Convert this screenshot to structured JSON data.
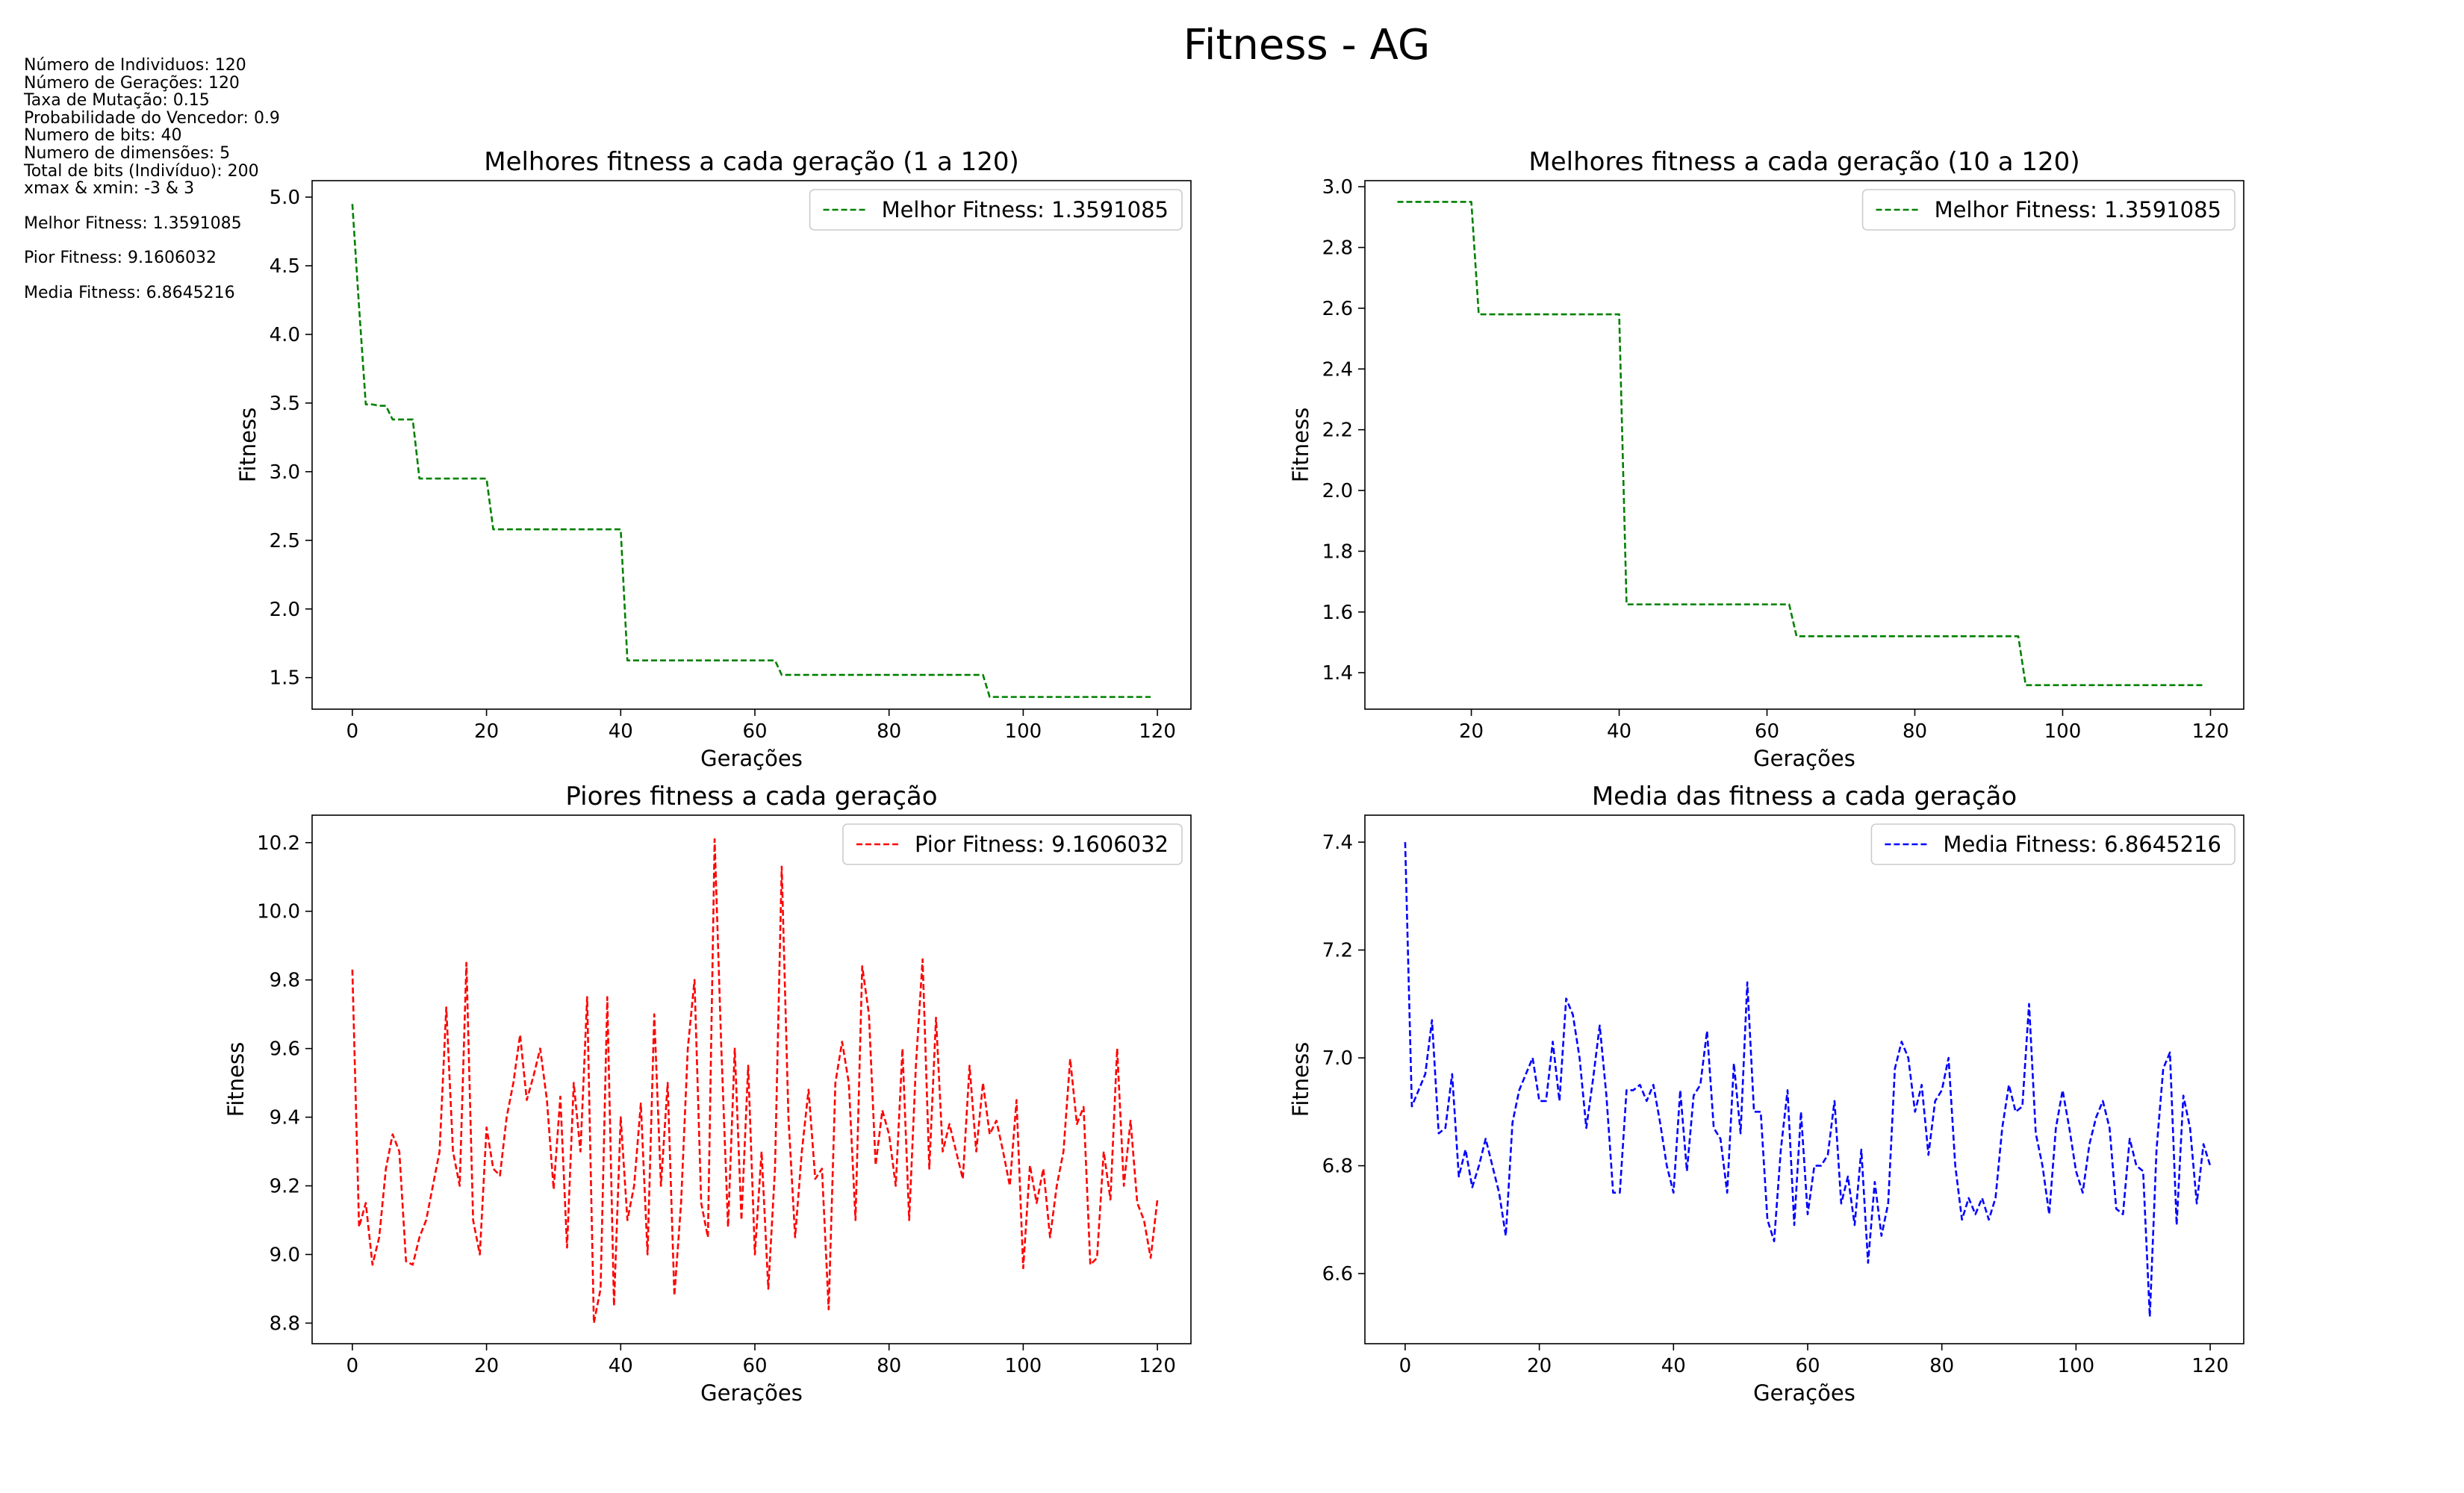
{
  "title": "Fitness - AG",
  "params_lines": [
    "Número de Individuos: 120",
    "Número de Gerações: 120",
    "Taxa de Mutação: 0.15",
    "Probabilidade do Vencedor: 0.9",
    "Numero de bits: 40",
    "Numero de dimensões: 5",
    "Total de bits (Indivíduo): 200",
    "xmax & xmin: -3 & 3"
  ],
  "summary_lines": [
    "Melhor Fitness: 1.3591085",
    "Pior Fitness: 9.1606032",
    "Media Fitness: 6.8645216"
  ],
  "colors": {
    "best": "#008000",
    "worst": "#ff0000",
    "mean": "#0000ff"
  },
  "chart_data": [
    {
      "type": "line",
      "title": "Melhores fitness a cada geração (1 a 120)",
      "xlabel": "Gerações",
      "ylabel": "Fitness",
      "xlim": [
        -6,
        125
      ],
      "ylim": [
        1.27,
        5.12
      ],
      "xticks": [
        0,
        20,
        40,
        60,
        80,
        100,
        120
      ],
      "yticks": [
        1.5,
        2.0,
        2.5,
        3.0,
        3.5,
        4.0,
        4.5,
        5.0
      ],
      "ytick_decimals": 1,
      "legend_position": "top-right",
      "series": [
        {
          "name": "Melhor Fitness: 1.3591085",
          "color": "#008000",
          "x_start": 0,
          "values": [
            4.95,
            4.2,
            3.49,
            3.49,
            3.48,
            3.48,
            3.38,
            3.38,
            3.38,
            3.38,
            2.95,
            2.95,
            2.95,
            2.95,
            2.95,
            2.95,
            2.95,
            2.95,
            2.95,
            2.95,
            2.95,
            2.58,
            2.58,
            2.58,
            2.58,
            2.58,
            2.58,
            2.58,
            2.58,
            2.58,
            2.58,
            2.58,
            2.58,
            2.58,
            2.58,
            2.58,
            2.58,
            2.58,
            2.58,
            2.58,
            2.58,
            1.625,
            1.625,
            1.625,
            1.625,
            1.625,
            1.625,
            1.625,
            1.625,
            1.625,
            1.625,
            1.625,
            1.625,
            1.625,
            1.625,
            1.625,
            1.625,
            1.625,
            1.625,
            1.625,
            1.625,
            1.625,
            1.625,
            1.625,
            1.52,
            1.52,
            1.52,
            1.52,
            1.52,
            1.52,
            1.52,
            1.52,
            1.52,
            1.52,
            1.52,
            1.52,
            1.52,
            1.52,
            1.52,
            1.52,
            1.52,
            1.52,
            1.52,
            1.52,
            1.52,
            1.52,
            1.52,
            1.52,
            1.52,
            1.52,
            1.52,
            1.52,
            1.52,
            1.52,
            1.52,
            1.359,
            1.359,
            1.359,
            1.359,
            1.359,
            1.359,
            1.359,
            1.359,
            1.359,
            1.359,
            1.359,
            1.359,
            1.359,
            1.359,
            1.359,
            1.359,
            1.359,
            1.359,
            1.359,
            1.359,
            1.359,
            1.359,
            1.359,
            1.359,
            1.359
          ]
        }
      ]
    },
    {
      "type": "line",
      "title": "Melhores fitness a cada geração (10 a 120)",
      "xlabel": "Gerações",
      "ylabel": "Fitness",
      "xlim": [
        5.6,
        124.5
      ],
      "ylim": [
        1.28,
        3.02
      ],
      "xticks": [
        20,
        40,
        60,
        80,
        100,
        120
      ],
      "yticks": [
        1.4,
        1.6,
        1.8,
        2.0,
        2.2,
        2.4,
        2.6,
        2.8,
        3.0
      ],
      "ytick_decimals": 1,
      "legend_position": "top-right",
      "series": [
        {
          "name": "Melhor Fitness: 1.3591085",
          "color": "#008000",
          "x_start": 10,
          "values": [
            2.95,
            2.95,
            2.95,
            2.95,
            2.95,
            2.95,
            2.95,
            2.95,
            2.95,
            2.95,
            2.95,
            2.58,
            2.58,
            2.58,
            2.58,
            2.58,
            2.58,
            2.58,
            2.58,
            2.58,
            2.58,
            2.58,
            2.58,
            2.58,
            2.58,
            2.58,
            2.58,
            2.58,
            2.58,
            2.58,
            2.58,
            1.625,
            1.625,
            1.625,
            1.625,
            1.625,
            1.625,
            1.625,
            1.625,
            1.625,
            1.625,
            1.625,
            1.625,
            1.625,
            1.625,
            1.625,
            1.625,
            1.625,
            1.625,
            1.625,
            1.625,
            1.625,
            1.625,
            1.625,
            1.52,
            1.52,
            1.52,
            1.52,
            1.52,
            1.52,
            1.52,
            1.52,
            1.52,
            1.52,
            1.52,
            1.52,
            1.52,
            1.52,
            1.52,
            1.52,
            1.52,
            1.52,
            1.52,
            1.52,
            1.52,
            1.52,
            1.52,
            1.52,
            1.52,
            1.52,
            1.52,
            1.52,
            1.52,
            1.52,
            1.52,
            1.359,
            1.359,
            1.359,
            1.359,
            1.359,
            1.359,
            1.359,
            1.359,
            1.359,
            1.359,
            1.359,
            1.359,
            1.359,
            1.359,
            1.359,
            1.359,
            1.359,
            1.359,
            1.359,
            1.359,
            1.359,
            1.359,
            1.359,
            1.359,
            1.359
          ]
        }
      ]
    },
    {
      "type": "line",
      "title": "Piores fitness a cada geração",
      "xlabel": "Gerações",
      "ylabel": "Fitness",
      "xlim": [
        -6,
        125
      ],
      "ylim": [
        8.74,
        10.28
      ],
      "xticks": [
        0,
        20,
        40,
        60,
        80,
        100,
        120
      ],
      "yticks": [
        8.8,
        9.0,
        9.2,
        9.4,
        9.6,
        9.8,
        10.0,
        10.2
      ],
      "ytick_decimals": 1,
      "legend_position": "top-right",
      "series": [
        {
          "name": "Pior Fitness: 9.1606032",
          "color": "#ff0000",
          "x_start": 0,
          "values": [
            9.83,
            9.08,
            9.15,
            8.97,
            9.05,
            9.25,
            9.35,
            9.3,
            8.98,
            8.97,
            9.05,
            9.1,
            9.2,
            9.3,
            9.72,
            9.3,
            9.2,
            9.85,
            9.1,
            9.0,
            9.37,
            9.25,
            9.23,
            9.4,
            9.5,
            9.64,
            9.45,
            9.52,
            9.6,
            9.45,
            9.19,
            9.46,
            9.02,
            9.5,
            9.3,
            9.75,
            8.8,
            8.9,
            9.75,
            8.85,
            9.4,
            9.1,
            9.2,
            9.44,
            9.0,
            9.7,
            9.2,
            9.5,
            8.88,
            9.15,
            9.6,
            9.8,
            9.15,
            9.05,
            10.21,
            9.6,
            9.08,
            9.6,
            9.1,
            9.55,
            9.0,
            9.3,
            8.9,
            9.25,
            10.13,
            9.4,
            9.05,
            9.3,
            9.48,
            9.22,
            9.25,
            8.84,
            9.5,
            9.62,
            9.5,
            9.1,
            9.84,
            9.7,
            9.26,
            9.42,
            9.35,
            9.2,
            9.6,
            9.1,
            9.55,
            9.86,
            9.25,
            9.69,
            9.3,
            9.38,
            9.3,
            9.22,
            9.55,
            9.3,
            9.5,
            9.35,
            9.39,
            9.3,
            9.2,
            9.45,
            8.96,
            9.26,
            9.15,
            9.25,
            9.05,
            9.2,
            9.3,
            9.57,
            9.38,
            9.43,
            8.97,
            8.99,
            9.3,
            9.16,
            9.6,
            9.2,
            9.39,
            9.15,
            9.1,
            8.99,
            9.16
          ]
        }
      ]
    },
    {
      "type": "line",
      "title": "Media das fitness a cada geração",
      "xlabel": "Gerações",
      "ylabel": "Fitness",
      "xlim": [
        -6,
        125
      ],
      "ylim": [
        6.47,
        7.45
      ],
      "xticks": [
        0,
        20,
        40,
        60,
        80,
        100,
        120
      ],
      "yticks": [
        6.6,
        6.8,
        7.0,
        7.2,
        7.4
      ],
      "ytick_decimals": 1,
      "legend_position": "top-right",
      "series": [
        {
          "name": "Media Fitness: 6.8645216",
          "color": "#0000ff",
          "x_start": 0,
          "values": [
            7.4,
            6.91,
            6.94,
            6.97,
            7.07,
            6.86,
            6.87,
            6.97,
            6.78,
            6.83,
            6.76,
            6.8,
            6.85,
            6.8,
            6.75,
            6.67,
            6.88,
            6.94,
            6.97,
            7.0,
            6.92,
            6.92,
            7.03,
            6.92,
            7.11,
            7.08,
            7.0,
            6.87,
            6.96,
            7.06,
            6.93,
            6.75,
            6.75,
            6.94,
            6.94,
            6.95,
            6.92,
            6.95,
            6.88,
            6.8,
            6.75,
            6.94,
            6.79,
            6.93,
            6.95,
            7.05,
            6.87,
            6.85,
            6.75,
            6.99,
            6.86,
            7.14,
            6.9,
            6.9,
            6.7,
            6.66,
            6.83,
            6.94,
            6.69,
            6.9,
            6.71,
            6.8,
            6.8,
            6.82,
            6.92,
            6.73,
            6.78,
            6.69,
            6.83,
            6.62,
            6.77,
            6.67,
            6.73,
            6.98,
            7.03,
            7.0,
            6.9,
            6.95,
            6.82,
            6.92,
            6.94,
            7.0,
            6.8,
            6.7,
            6.74,
            6.71,
            6.74,
            6.7,
            6.74,
            6.87,
            6.95,
            6.9,
            6.91,
            7.1,
            6.86,
            6.8,
            6.71,
            6.87,
            6.94,
            6.87,
            6.79,
            6.75,
            6.84,
            6.89,
            6.92,
            6.87,
            6.72,
            6.71,
            6.85,
            6.8,
            6.79,
            6.52,
            6.83,
            6.98,
            7.01,
            6.69,
            6.93,
            6.87,
            6.73,
            6.84,
            6.8
          ]
        }
      ]
    }
  ]
}
